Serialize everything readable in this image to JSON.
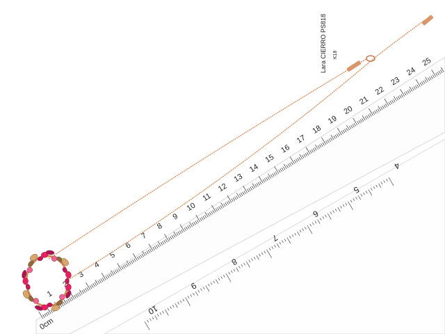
{
  "scene": {
    "subject": "pendant-necklace-with-ruler",
    "chain_color": "#d4875a",
    "gem_colors": [
      "#c2185b",
      "#e91e63",
      "#ad1457",
      "#f06292",
      "#8e6b3a",
      "#d7a86e"
    ],
    "tag": {
      "line1": "Lara  CIERRO  PS818",
      "line2": "K18"
    },
    "cm_ruler": {
      "unit_label": "0cm",
      "numbers": [
        "1",
        "2",
        "3",
        "4",
        "5",
        "6",
        "7",
        "8",
        "9",
        "10",
        "11",
        "12",
        "13",
        "14",
        "15",
        "16",
        "17",
        "18",
        "19",
        "20",
        "21",
        "22",
        "23",
        "24",
        "25"
      ]
    },
    "inch_ruler": {
      "numbers": [
        "10",
        "9",
        "8",
        "7",
        "6",
        "5",
        "4"
      ]
    }
  }
}
